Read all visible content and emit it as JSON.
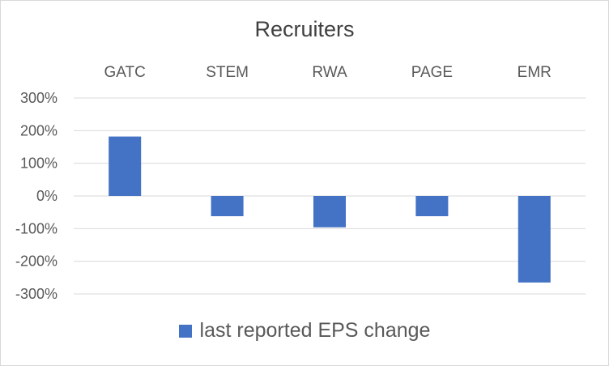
{
  "chart_data": {
    "type": "bar",
    "title": "Recruiters",
    "categories": [
      "GATC",
      "STEM",
      "RWA",
      "PAGE",
      "EMR"
    ],
    "series": [
      {
        "name": "last reported EPS change",
        "values": [
          182,
          -62,
          -96,
          -62,
          -265
        ],
        "color": "#4472c4"
      }
    ],
    "ylim": [
      -300,
      300
    ],
    "y_ticks": [
      300,
      200,
      100,
      0,
      -100,
      -200,
      -300
    ],
    "y_tick_labels": [
      "300%",
      "200%",
      "100%",
      "0%",
      "-100%",
      "-200%",
      "-300%"
    ],
    "y_format": "percent",
    "category_labels_position": "top",
    "grid": true,
    "legend_position": "bottom",
    "xlabel": "",
    "ylabel": ""
  }
}
